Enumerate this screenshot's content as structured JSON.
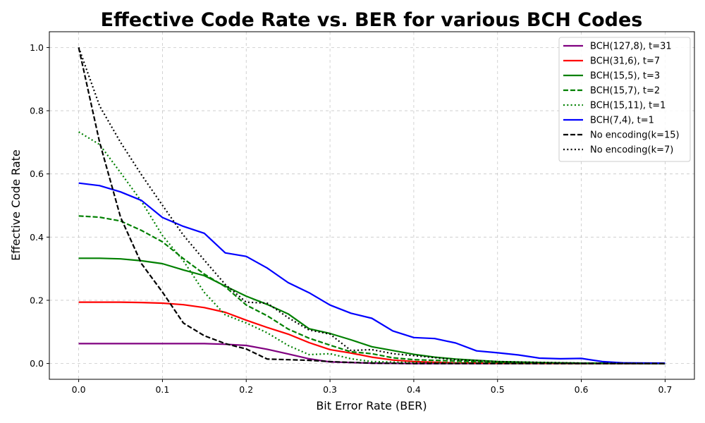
{
  "chart_data": {
    "type": "line",
    "title": "Effective Code Rate vs. BER for various BCH Codes",
    "xlabel": "Bit Error Rate (BER)",
    "ylabel": "Effective Code Rate",
    "xlim": [
      -0.035,
      0.735
    ],
    "ylim": [
      -0.05,
      1.05
    ],
    "xticks": [
      0.0,
      0.1,
      0.2,
      0.3,
      0.4,
      0.5,
      0.6,
      0.7
    ],
    "yticks": [
      0.0,
      0.2,
      0.4,
      0.6,
      0.8,
      1.0
    ],
    "xtick_labels": [
      "0.0",
      "0.1",
      "0.2",
      "0.3",
      "0.4",
      "0.5",
      "0.6",
      "0.7"
    ],
    "ytick_labels": [
      "0.0",
      "0.2",
      "0.4",
      "0.6",
      "0.8",
      "1.0"
    ],
    "grid": true,
    "legend_position": "top-right",
    "series": [
      {
        "name": "BCH(127,8), t=31",
        "color": "#800080",
        "dash": "solid",
        "x": [
          0.0,
          0.05,
          0.1,
          0.15,
          0.175,
          0.2,
          0.225,
          0.25,
          0.275,
          0.3,
          0.35,
          0.4,
          0.5,
          0.6,
          0.7
        ],
        "y": [
          0.063,
          0.063,
          0.063,
          0.063,
          0.061,
          0.057,
          0.045,
          0.03,
          0.015,
          0.005,
          0.001,
          0.0,
          0.0,
          0.0,
          0.0
        ]
      },
      {
        "name": "BCH(31,6), t=7",
        "color": "#ff0000",
        "dash": "solid",
        "x": [
          0.0,
          0.05,
          0.075,
          0.1,
          0.125,
          0.15,
          0.175,
          0.2,
          0.225,
          0.25,
          0.275,
          0.3,
          0.325,
          0.35,
          0.375,
          0.4,
          0.45,
          0.5,
          0.6,
          0.7
        ],
        "y": [
          0.194,
          0.194,
          0.193,
          0.191,
          0.186,
          0.177,
          0.162,
          0.137,
          0.114,
          0.093,
          0.066,
          0.044,
          0.033,
          0.02,
          0.011,
          0.006,
          0.002,
          0.001,
          0.0,
          0.0
        ]
      },
      {
        "name": "BCH(15,5), t=3",
        "color": "#008000",
        "dash": "solid",
        "x": [
          0.0,
          0.025,
          0.05,
          0.075,
          0.1,
          0.125,
          0.15,
          0.175,
          0.2,
          0.225,
          0.25,
          0.275,
          0.3,
          0.325,
          0.35,
          0.375,
          0.4,
          0.425,
          0.45,
          0.5,
          0.55,
          0.6,
          0.7
        ],
        "y": [
          0.333,
          0.333,
          0.331,
          0.325,
          0.316,
          0.296,
          0.278,
          0.245,
          0.213,
          0.187,
          0.157,
          0.11,
          0.095,
          0.075,
          0.053,
          0.041,
          0.029,
          0.02,
          0.014,
          0.006,
          0.003,
          0.001,
          0.0
        ]
      },
      {
        "name": "BCH(15,7), t=2",
        "color": "#008000",
        "dash": "dashed",
        "x": [
          0.0,
          0.025,
          0.05,
          0.075,
          0.1,
          0.125,
          0.15,
          0.175,
          0.2,
          0.225,
          0.25,
          0.275,
          0.3,
          0.325,
          0.35,
          0.375,
          0.4,
          0.45,
          0.5,
          0.6,
          0.7
        ],
        "y": [
          0.467,
          0.463,
          0.451,
          0.421,
          0.385,
          0.332,
          0.283,
          0.243,
          0.185,
          0.151,
          0.109,
          0.08,
          0.058,
          0.037,
          0.031,
          0.018,
          0.012,
          0.008,
          0.004,
          0.001,
          0.0
        ]
      },
      {
        "name": "BCH(15,11), t=1",
        "color": "#008000",
        "dash": "dotted",
        "x": [
          0.0,
          0.025,
          0.05,
          0.075,
          0.1,
          0.125,
          0.15,
          0.175,
          0.2,
          0.225,
          0.25,
          0.275,
          0.3,
          0.325,
          0.35,
          0.4,
          0.5,
          0.6,
          0.7
        ],
        "y": [
          0.733,
          0.693,
          0.604,
          0.513,
          0.405,
          0.325,
          0.225,
          0.154,
          0.128,
          0.097,
          0.057,
          0.028,
          0.031,
          0.015,
          0.006,
          0.003,
          0.001,
          0.0,
          0.0
        ]
      },
      {
        "name": "BCH(7,4), t=1",
        "color": "#0000ff",
        "dash": "solid",
        "x": [
          0.0,
          0.025,
          0.05,
          0.075,
          0.1,
          0.125,
          0.15,
          0.175,
          0.2,
          0.225,
          0.25,
          0.275,
          0.3,
          0.325,
          0.35,
          0.375,
          0.4,
          0.425,
          0.45,
          0.475,
          0.5,
          0.525,
          0.55,
          0.575,
          0.6,
          0.625,
          0.65,
          0.7
        ],
        "y": [
          0.571,
          0.563,
          0.543,
          0.516,
          0.462,
          0.434,
          0.412,
          0.35,
          0.339,
          0.302,
          0.256,
          0.224,
          0.185,
          0.159,
          0.143,
          0.103,
          0.082,
          0.079,
          0.065,
          0.04,
          0.034,
          0.027,
          0.017,
          0.015,
          0.016,
          0.006,
          0.002,
          0.001
        ]
      },
      {
        "name": "No encoding(k=15)",
        "color": "#000000",
        "dash": "dashed",
        "x": [
          0.0,
          0.025,
          0.05,
          0.075,
          0.1,
          0.125,
          0.15,
          0.175,
          0.2,
          0.225,
          0.25,
          0.275,
          0.3,
          0.35,
          0.4,
          0.5,
          0.6,
          0.7
        ],
        "y": [
          1.0,
          0.7,
          0.463,
          0.316,
          0.226,
          0.128,
          0.088,
          0.063,
          0.046,
          0.014,
          0.012,
          0.01,
          0.006,
          0.001,
          0.0,
          0.0,
          0.0,
          0.0
        ]
      },
      {
        "name": "No encoding(k=7)",
        "color": "#000000",
        "dash": "dotted",
        "x": [
          0.0,
          0.025,
          0.05,
          0.075,
          0.1,
          0.125,
          0.15,
          0.175,
          0.2,
          0.225,
          0.25,
          0.275,
          0.3,
          0.325,
          0.35,
          0.375,
          0.4,
          0.45,
          0.5,
          0.6,
          0.7
        ],
        "y": [
          1.0,
          0.815,
          0.7,
          0.597,
          0.501,
          0.406,
          0.327,
          0.25,
          0.194,
          0.191,
          0.145,
          0.106,
          0.093,
          0.041,
          0.044,
          0.031,
          0.025,
          0.012,
          0.006,
          0.001,
          0.0
        ]
      }
    ]
  }
}
